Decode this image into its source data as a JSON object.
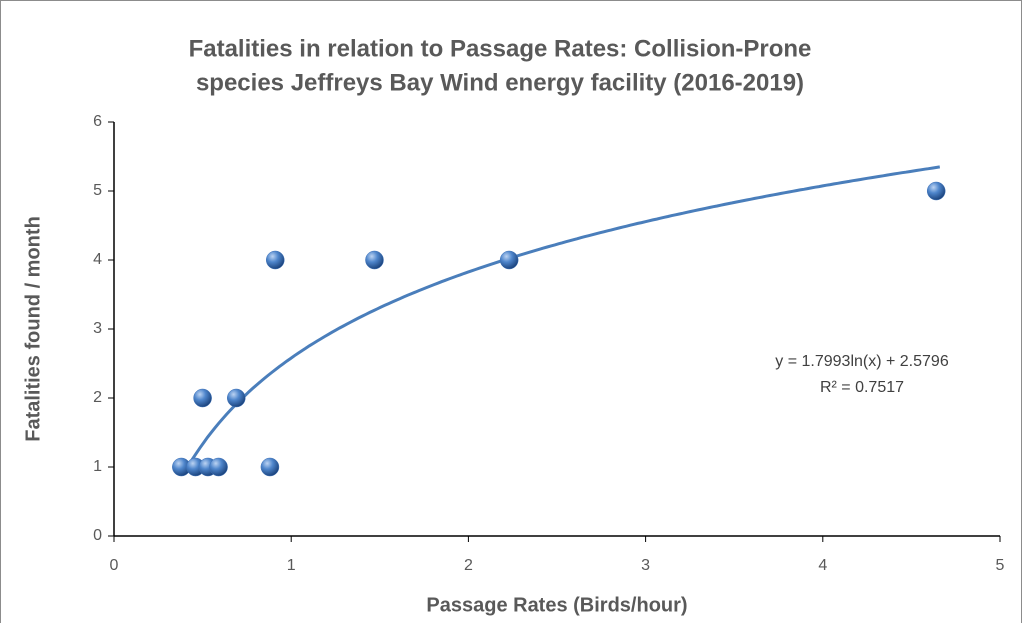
{
  "chart_data": {
    "type": "scatter",
    "title": [
      "Fatalities in relation to Passage Rates: Collision-Prone",
      "species Jeffreys Bay Wind energy facility (2016-2019)"
    ],
    "x_label": "Passage Rates (Birds/hour)",
    "y_label": "Fatalities found / month",
    "series": [
      {
        "name": "Fatalities",
        "color": "#3f72b8",
        "x": [
          0.38,
          0.46,
          0.53,
          0.59,
          0.5,
          0.69,
          0.88,
          0.91,
          1.47,
          2.23,
          4.64
        ],
        "values": [
          1,
          1,
          1,
          1,
          2,
          2,
          1,
          4,
          4,
          4,
          5
        ]
      }
    ],
    "trendline": {
      "type": "log",
      "a": 1.7993,
      "b": 2.5796,
      "xrange": [
        0.4,
        4.66
      ],
      "color": "#4a7ebb",
      "equation": "y = 1.7993ln(x) + 2.5796",
      "r2": "R² = 0.7517"
    },
    "xlim": [
      0,
      5
    ],
    "xticks": [
      0,
      1,
      2,
      3,
      4,
      5
    ],
    "ylim": [
      0,
      6
    ],
    "yticks": [
      0,
      1,
      2,
      3,
      4,
      5,
      6
    ],
    "grid": false
  }
}
